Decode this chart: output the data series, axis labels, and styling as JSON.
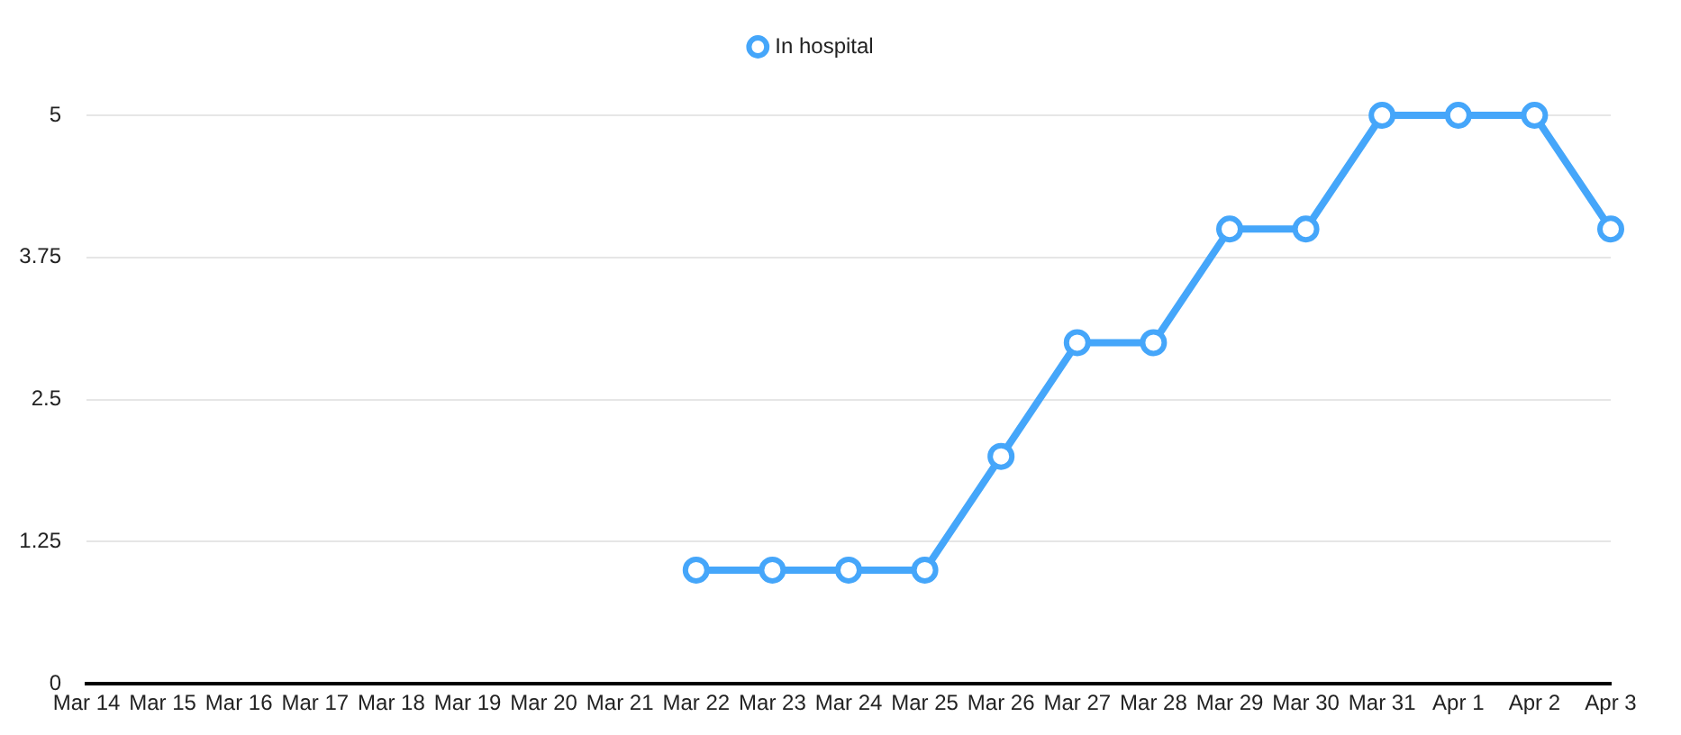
{
  "chart_data": {
    "type": "line",
    "categories": [
      "Mar 14",
      "Mar 15",
      "Mar 16",
      "Mar 17",
      "Mar 18",
      "Mar 19",
      "Mar 20",
      "Mar 21",
      "Mar 22",
      "Mar 23",
      "Mar 24",
      "Mar 25",
      "Mar 26",
      "Mar 27",
      "Mar 28",
      "Mar 29",
      "Mar 30",
      "Mar 31",
      "Apr 1",
      "Apr 2",
      "Apr 3"
    ],
    "series": [
      {
        "name": "In hospital",
        "color": "#45a6fa",
        "values": [
          null,
          null,
          null,
          null,
          null,
          null,
          null,
          null,
          1,
          1,
          1,
          1,
          2,
          3,
          3,
          4,
          4,
          5,
          5,
          5,
          4
        ]
      }
    ],
    "ylim": [
      0,
      5
    ],
    "yticks": [
      0,
      1.25,
      2.5,
      3.75,
      5
    ],
    "grid": "y",
    "legend": "top",
    "marker": "circle"
  }
}
